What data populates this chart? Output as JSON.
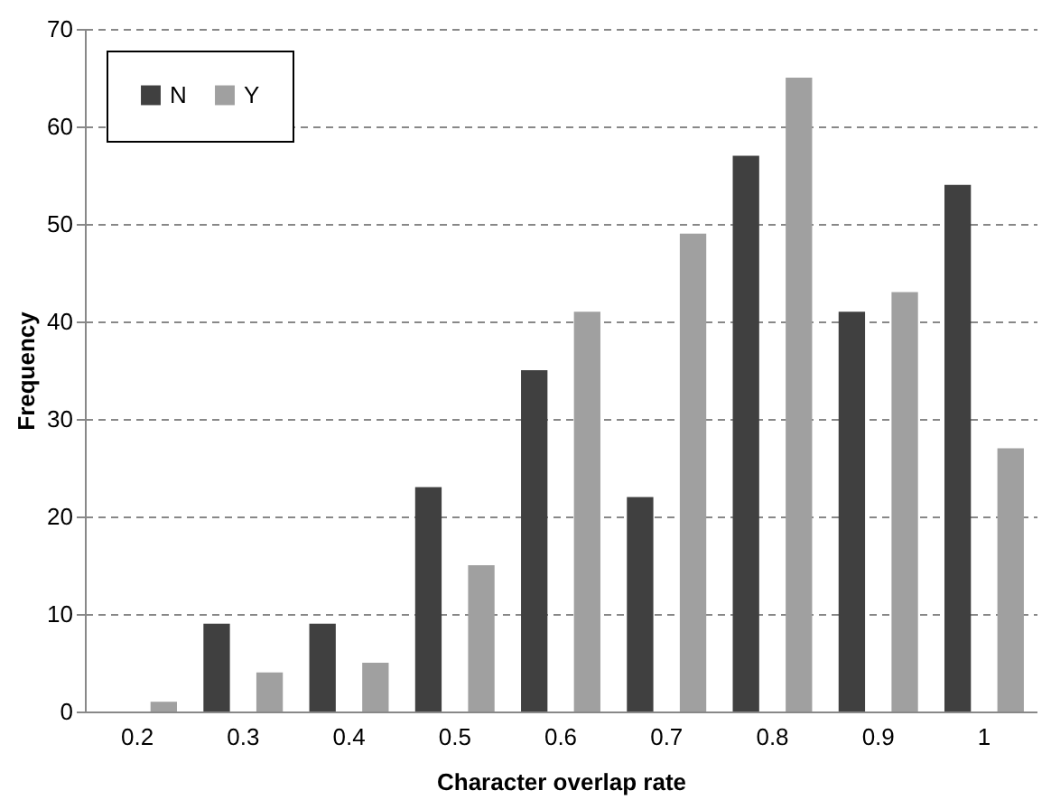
{
  "chart_data": {
    "type": "bar",
    "xlabel": "Character overlap rate",
    "ylabel": "Frequency",
    "categories": [
      "0.2",
      "0.3",
      "0.4",
      "0.5",
      "0.6",
      "0.7",
      "0.8",
      "0.9",
      "1"
    ],
    "series": [
      {
        "name": "N",
        "color": "#404040",
        "values": [
          0,
          9,
          9,
          23,
          35,
          22,
          57,
          41,
          54
        ]
      },
      {
        "name": "Y",
        "color": "#a0a0a0",
        "values": [
          1,
          4,
          5,
          15,
          41,
          49,
          65,
          43,
          27
        ]
      }
    ],
    "ylim": [
      0,
      70
    ],
    "yticks": [
      0,
      10,
      20,
      30,
      40,
      50,
      60,
      70
    ],
    "grid": "y",
    "legend": "top left"
  }
}
